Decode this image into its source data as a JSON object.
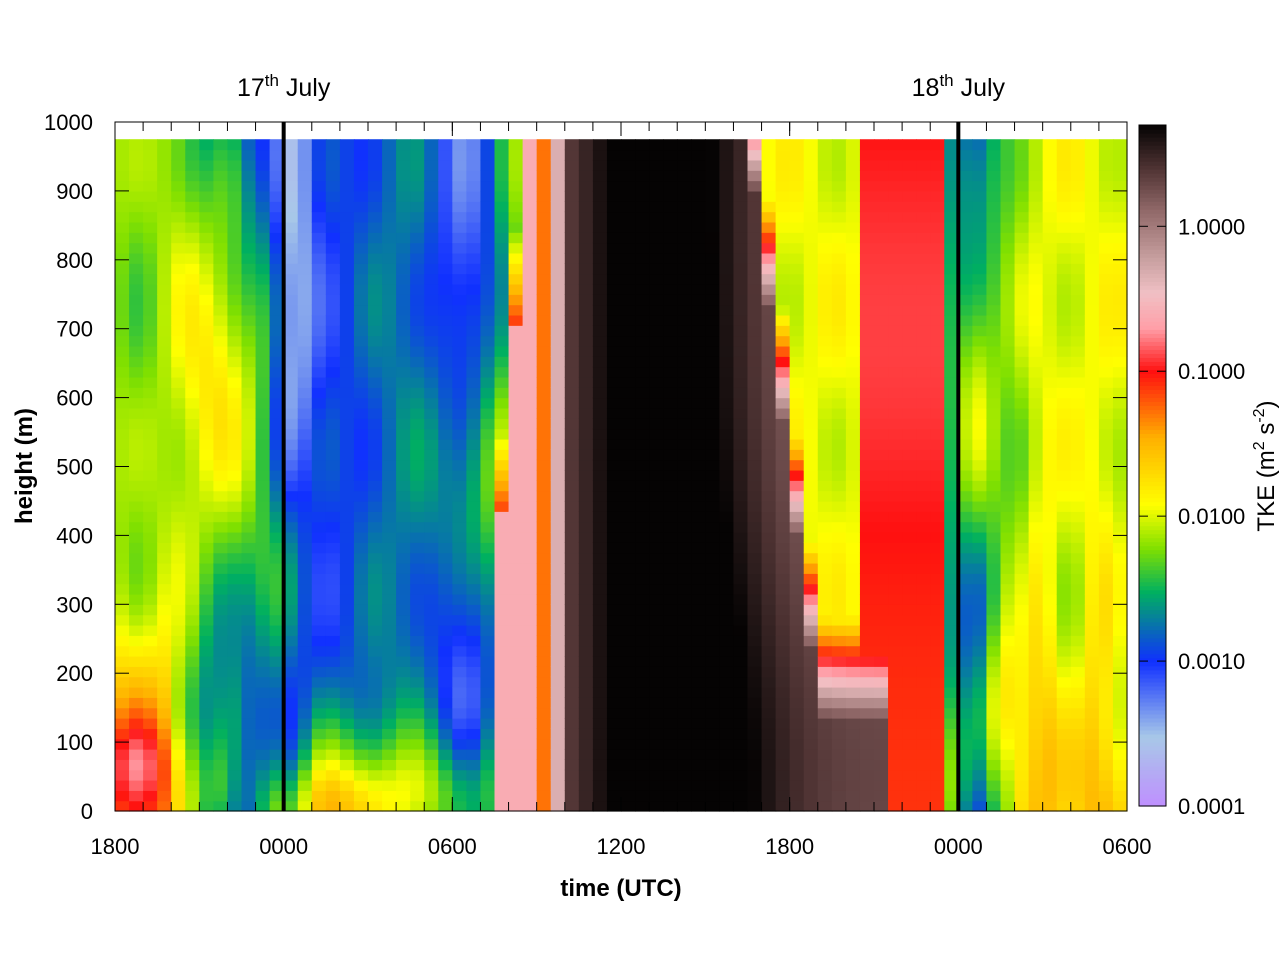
{
  "chart_data": {
    "type": "heatmap",
    "title": "",
    "xlabel": "time (UTC)",
    "ylabel": "height (m)",
    "colorbar": {
      "label": "TKE (m² s⁻²)",
      "label_parts": {
        "main": "TKE (m",
        "sup1": "2",
        "mid": " s",
        "sup2": "-2",
        "end": ")"
      },
      "scale": "log",
      "range": [
        0.0001,
        5.0
      ],
      "ticks": [
        0.0001,
        0.001,
        0.01,
        0.1,
        1.0
      ],
      "tick_labels": [
        "0.0001",
        "0.0010",
        "0.0100",
        "0.1000",
        "1.0000"
      ],
      "palette": [
        {
          "v": 0.0001,
          "c": "#bf8fff"
        },
        {
          "v": 0.0003,
          "c": "#a8c8e8"
        },
        {
          "v": 0.001,
          "c": "#1030ff"
        },
        {
          "v": 0.003,
          "c": "#00b060"
        },
        {
          "v": 0.006,
          "c": "#80e000"
        },
        {
          "v": 0.012,
          "c": "#ffff00"
        },
        {
          "v": 0.035,
          "c": "#ffb000"
        },
        {
          "v": 0.1,
          "c": "#ff1010"
        },
        {
          "v": 0.2,
          "c": "#ff9fa8"
        },
        {
          "v": 0.35,
          "c": "#f0c0c4"
        },
        {
          "v": 0.6,
          "c": "#c8a0a0"
        },
        {
          "v": 1.3,
          "c": "#906868"
        },
        {
          "v": 2.5,
          "c": "#503434"
        },
        {
          "v": 5.0,
          "c": "#050303"
        }
      ]
    },
    "x_axis": {
      "unit": "hours since 1800 UTC, 16 July",
      "range": [
        0,
        36
      ],
      "ticks": [
        0,
        6,
        12,
        18,
        24,
        30,
        36
      ],
      "tick_labels": [
        "1800",
        "0000",
        "0600",
        "1200",
        "1800",
        "0000",
        "0600"
      ],
      "minor_step": 1
    },
    "y_axis": {
      "range": [
        0,
        1000
      ],
      "ticks": [
        0,
        100,
        200,
        300,
        400,
        500,
        600,
        700,
        800,
        900,
        1000
      ],
      "tick_labels": [
        "0",
        "100",
        "200",
        "300",
        "400",
        "500",
        "600",
        "700",
        "800",
        "900",
        "1000"
      ]
    },
    "grid": {
      "x_step_hours": 0.5,
      "y_step_m": 15,
      "y_top_m": 975
    },
    "markers": [
      {
        "x": 6,
        "label_main": "17",
        "label_sup": "th",
        "label_rest": " July"
      },
      {
        "x": 30,
        "label_main": "18",
        "label_sup": "th",
        "label_rest": " July"
      }
    ]
  }
}
